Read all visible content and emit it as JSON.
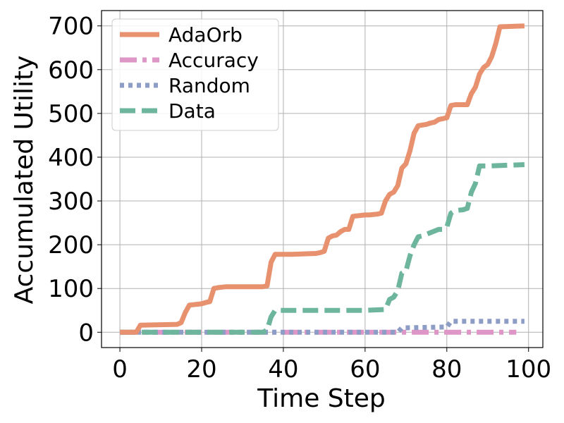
{
  "chart_data": {
    "type": "line",
    "xlabel": "Time Step",
    "ylabel": "Accumulated Utility",
    "xlim": [
      -4.5,
      103.5
    ],
    "ylim": [
      -35,
      735
    ],
    "xticks": [
      0,
      20,
      40,
      60,
      80,
      100
    ],
    "yticks": [
      0,
      100,
      200,
      300,
      400,
      500,
      600,
      700
    ],
    "grid": true,
    "legend_position": "top-left",
    "series": [
      {
        "name": "AdaOrb",
        "color": "#e8916f",
        "style": "solid",
        "x": [
          0,
          4,
          5,
          14,
          15,
          16,
          17,
          20,
          21,
          22,
          23,
          24,
          25,
          26,
          35,
          36,
          37,
          38,
          42,
          48,
          49,
          50,
          51,
          52,
          53,
          54,
          55,
          56,
          57,
          60,
          61,
          63,
          64,
          65,
          66,
          67,
          68,
          69,
          70,
          71,
          72,
          73,
          75,
          76,
          77,
          78,
          79,
          80,
          81,
          82,
          85,
          86,
          87,
          88,
          89,
          90,
          91,
          92,
          93,
          99
        ],
        "y": [
          0,
          0,
          16,
          18,
          22,
          45,
          62,
          65,
          68,
          70,
          100,
          102,
          103,
          104,
          104,
          106,
          160,
          178,
          178,
          180,
          182,
          185,
          215,
          220,
          222,
          230,
          235,
          235,
          265,
          268,
          268,
          270,
          272,
          300,
          315,
          320,
          335,
          375,
          385,
          415,
          455,
          472,
          475,
          478,
          480,
          486,
          488,
          490,
          518,
          520,
          520,
          545,
          560,
          590,
          605,
          612,
          630,
          660,
          698,
          700
        ]
      },
      {
        "name": "Accuracy",
        "color": "#dd96c6",
        "style": "dashdot",
        "x": [
          0,
          97
        ],
        "y": [
          0,
          0
        ]
      },
      {
        "name": "Random",
        "color": "#8e9dc6",
        "style": "dotted",
        "x": [
          0,
          68,
          69,
          80,
          81,
          99
        ],
        "y": [
          0,
          0,
          10,
          12,
          25,
          25
        ]
      },
      {
        "name": "Data",
        "color": "#6db59d",
        "style": "dashed",
        "x": [
          0,
          35,
          36,
          37,
          38,
          42,
          60,
          65,
          66,
          67,
          68,
          69,
          70,
          71,
          72,
          73,
          74,
          78,
          79,
          80,
          81,
          82,
          84,
          85,
          86,
          87,
          88,
          90,
          99
        ],
        "y": [
          0,
          0,
          5,
          35,
          50,
          50,
          50,
          52,
          75,
          80,
          95,
          135,
          140,
          175,
          200,
          218,
          220,
          235,
          235,
          240,
          272,
          278,
          280,
          283,
          320,
          340,
          380,
          380,
          383
        ]
      }
    ]
  }
}
